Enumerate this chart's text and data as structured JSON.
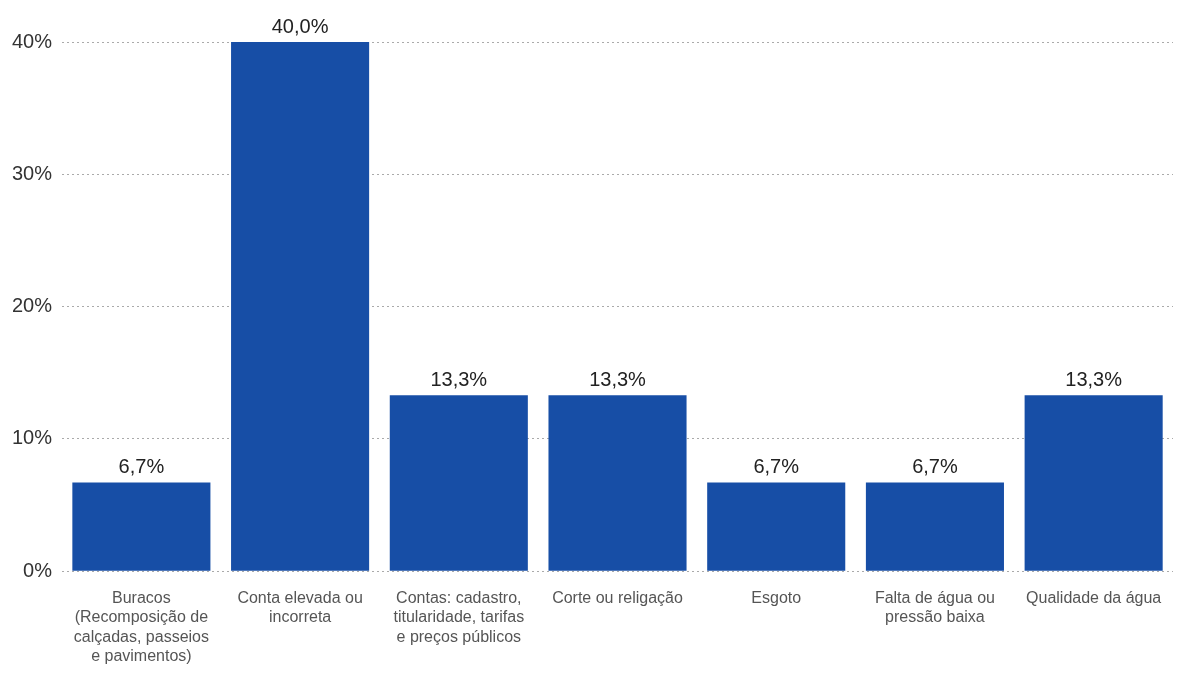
{
  "chart_data": {
    "type": "bar",
    "categories": [
      "Buracos (Recomposição de calçadas, passeios e pavimentos)",
      "Conta elevada ou incorreta",
      "Contas: cadastro, titularidade, tarifas e preços públicos",
      "Corte ou religação",
      "Esgoto",
      "Falta de água ou pressão baixa",
      "Qualidade da água"
    ],
    "values": [
      6.7,
      40.0,
      13.3,
      13.3,
      6.7,
      6.7,
      13.3
    ],
    "value_labels": [
      "6,7%",
      "40,0%",
      "13,3%",
      "13,3%",
      "6,7%",
      "6,7%",
      "13,3%"
    ],
    "color": "#174ea6",
    "ylim": [
      0,
      40
    ],
    "yticks": [
      {
        "value": 0,
        "label": "0%"
      },
      {
        "value": 10,
        "label": "10%"
      },
      {
        "value": 20,
        "label": "20%"
      },
      {
        "value": 30,
        "label": "30%"
      },
      {
        "value": 40,
        "label": "40%"
      }
    ],
    "grid": "y"
  }
}
